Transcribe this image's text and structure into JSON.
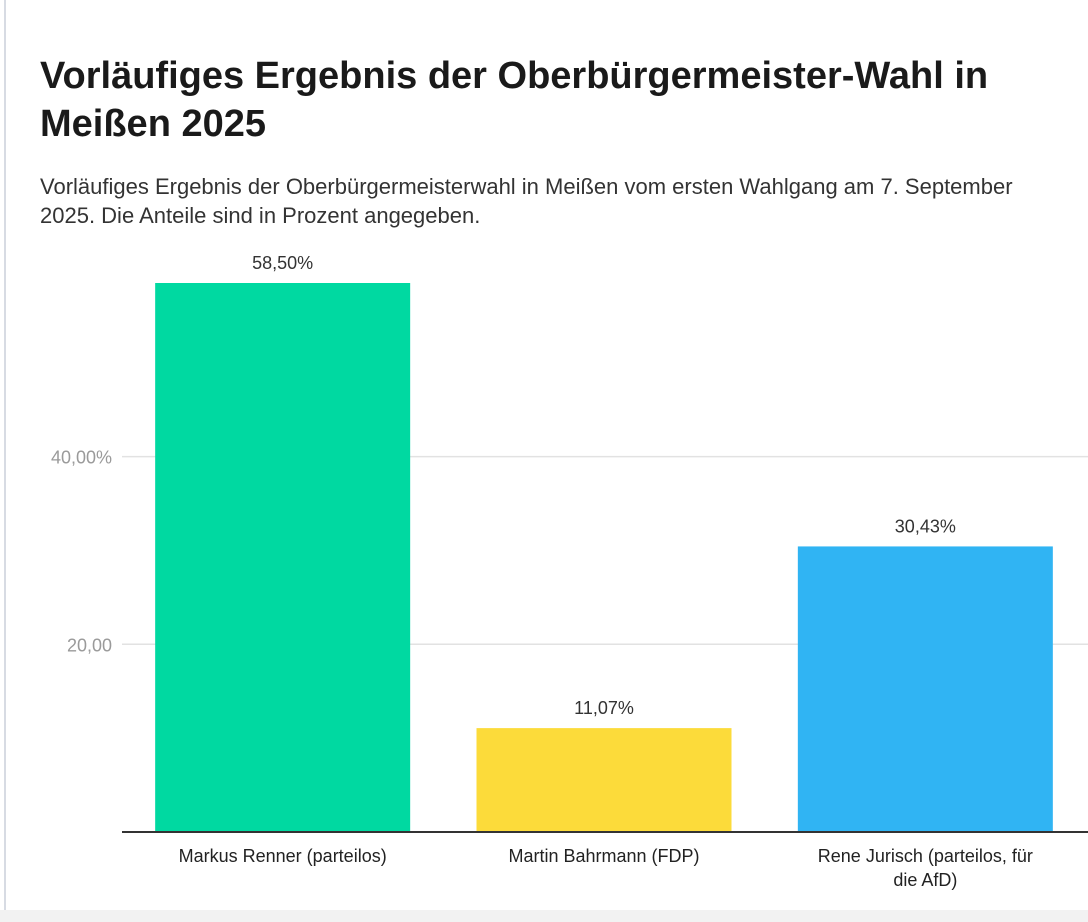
{
  "chart_data": {
    "type": "bar",
    "title": "Vorläufiges Ergebnis der Oberbürgermeister-Wahl in Meißen 2025",
    "subtitle": "Vorläufiges Ergebnis der Oberbürgermeisterwahl in Meißen vom ersten Wahlgang am 7. September 2025. Die Anteile sind in Prozent angegeben.",
    "categories": [
      [
        "Markus Renner (parteilos)"
      ],
      [
        "Martin Bahrmann (FDP)"
      ],
      [
        "Rene Jurisch (parteilos, für",
        "die AfD)"
      ]
    ],
    "values": [
      58.5,
      11.07,
      30.43
    ],
    "data_labels": [
      "58,50%",
      "11,07%",
      "30,43%"
    ],
    "colors": [
      "#00d9a1",
      "#fcdb3a",
      "#30b4f3"
    ],
    "yticks": [
      20,
      40
    ],
    "ytick_labels": [
      "20,00",
      "40,00%"
    ],
    "ylim": [
      0,
      58.5
    ],
    "xlabel": "",
    "ylabel": "",
    "grid": true,
    "legend": "none"
  }
}
